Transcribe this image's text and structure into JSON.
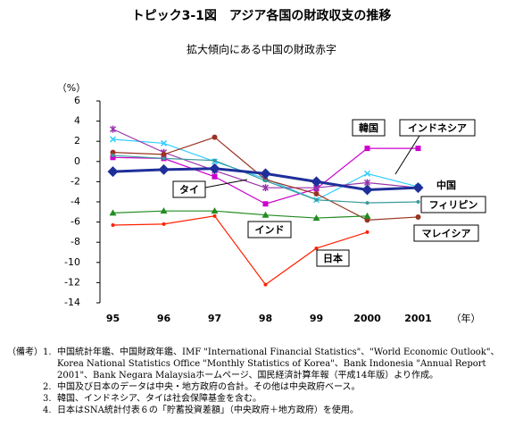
{
  "chart_data": {
    "type": "line",
    "title": "トピック3-1図　アジア各国の財政収支の推移",
    "subtitle": "拡大傾向にある中国の財政赤字",
    "y_label": "（%）",
    "x_label": "（年）",
    "categories": [
      "95",
      "96",
      "97",
      "98",
      "99",
      "2000",
      "2001"
    ],
    "ylim": [
      -14,
      6
    ],
    "yticks": [
      -14,
      -12,
      -10,
      -8,
      -6,
      -4,
      -2,
      0,
      2,
      4,
      6
    ],
    "series": [
      {
        "name": "韓国",
        "color": "#cc00cc",
        "marker": "square",
        "values": [
          0.4,
          0.3,
          -1.5,
          -4.2,
          -2.7,
          1.3,
          1.3
        ]
      },
      {
        "name": "インドネシア",
        "color": "#33ccff",
        "marker": "cross",
        "values": [
          2.2,
          1.8,
          0.0,
          -1.7,
          -3.8,
          -1.2,
          -2.5
        ]
      },
      {
        "name": "タイ",
        "color": "#9933aa",
        "marker": "star",
        "values": [
          3.2,
          0.9,
          -0.9,
          -2.6,
          -2.6,
          -2.1,
          -2.6
        ]
      },
      {
        "name": "マレイシア",
        "color": "#993322",
        "marker": "circle",
        "values": [
          0.9,
          0.7,
          2.4,
          -1.8,
          -3.2,
          -5.8,
          -5.5
        ]
      },
      {
        "name": "フィリピン",
        "color": "#3a9a9a",
        "marker": "dot",
        "values": [
          0.6,
          0.3,
          0.1,
          -1.9,
          -3.8,
          -4.1,
          -4.0
        ]
      },
      {
        "name": "インド",
        "color": "#228b22",
        "marker": "triangle",
        "values": [
          -5.1,
          -4.9,
          -4.9,
          -5.3,
          -5.6,
          -5.4,
          null
        ]
      },
      {
        "name": "日本",
        "color": "#ff2200",
        "marker": "dot",
        "values": [
          -6.3,
          -6.2,
          -5.4,
          -12.2,
          -8.6,
          -7.0,
          null
        ]
      },
      {
        "name": "中国",
        "color": "#1f2f99",
        "marker": "diamond",
        "width": 3,
        "values": [
          -1.0,
          -0.8,
          -0.7,
          -1.2,
          -2.0,
          -2.8,
          -2.6
        ]
      }
    ]
  },
  "notes": {
    "heading": "（備考）",
    "items": [
      {
        "num": "1.",
        "text": "中国統計年鑑、中国財政年鑑、IMF \"International Financial Statistics\"、\"World Economic Outlook\"、Korea National Statistics Office \"Monthly Statistics of Korea\"、Bank Indonesia \"Annual Report 2001\"、Bank Negara Malaysiaホームページ、国民経済計算年報（平成14年版）より作成。"
      },
      {
        "num": "2.",
        "text": "中国及び日本のデータは中央・地方政府の合計。その他は中央政府ベース。"
      },
      {
        "num": "3.",
        "text": "韓国、インドネシア、タイは社会保障基金を含む。"
      },
      {
        "num": "4.",
        "text": "日本はSNA統計付表６の「貯蓄投資差額」（中央政府＋地方政府）を使用。"
      }
    ]
  }
}
